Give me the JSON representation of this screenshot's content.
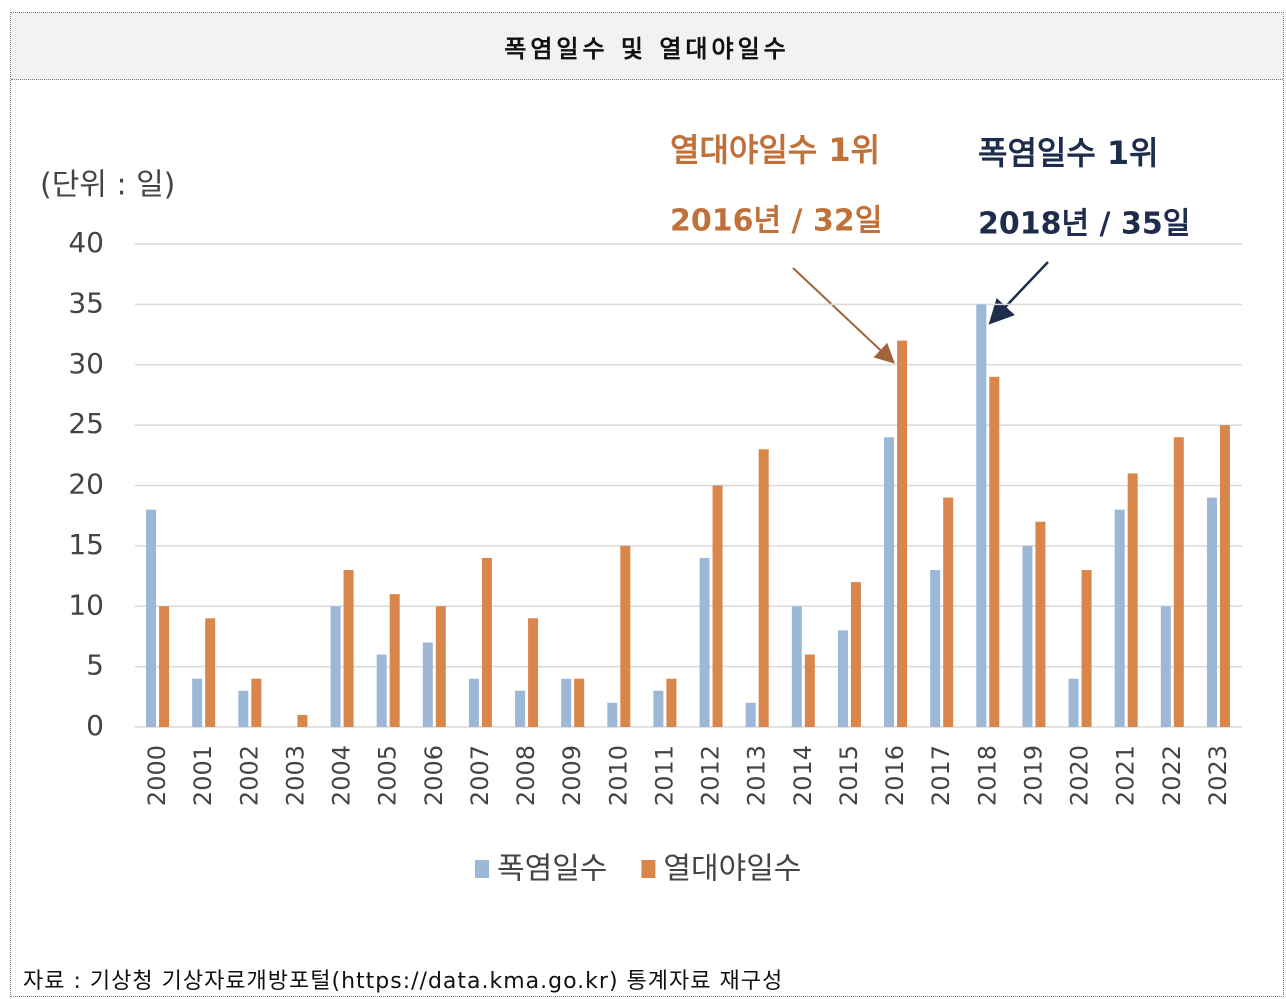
{
  "header": {
    "title": "폭염일수 및 열대야일수"
  },
  "footer": {
    "source": "자료 : 기상청 기상자료개방포털(https://data.kma.go.kr) 통계자료 재구성"
  },
  "chart_data": {
    "type": "bar",
    "y_label": "(단위 : 일)",
    "annotations": [
      "열대야일수 1위",
      "2016년 / 32일",
      "폭염일수 1위",
      "2018년 / 35일"
    ],
    "categories": [
      "2000",
      "2001",
      "2002",
      "2003",
      "2004",
      "2005",
      "2006",
      "2007",
      "2008",
      "2009",
      "2010",
      "2011",
      "2012",
      "2013",
      "2014",
      "2015",
      "2016",
      "2017",
      "2018",
      "2019",
      "2020",
      "2021",
      "2022",
      "2023"
    ],
    "series": [
      {
        "name": "폭염일수",
        "color": "#9db8d6",
        "values": [
          18,
          4,
          3,
          0,
          10,
          6,
          7,
          4,
          3,
          4,
          2,
          3,
          14,
          2,
          10,
          8,
          24,
          13,
          35,
          15,
          4,
          18,
          10,
          19
        ]
      },
      {
        "name": "열대야일수",
        "color": "#d9864a",
        "values": [
          10,
          9,
          4,
          1,
          13,
          11,
          10,
          14,
          9,
          4,
          15,
          4,
          20,
          23,
          6,
          12,
          32,
          19,
          29,
          17,
          13,
          21,
          24,
          25
        ]
      }
    ],
    "ylim": [
      0,
      40
    ],
    "yticks": [
      0,
      5,
      10,
      15,
      20,
      25,
      30,
      35,
      40
    ],
    "grid": true,
    "legend": "bottom"
  }
}
